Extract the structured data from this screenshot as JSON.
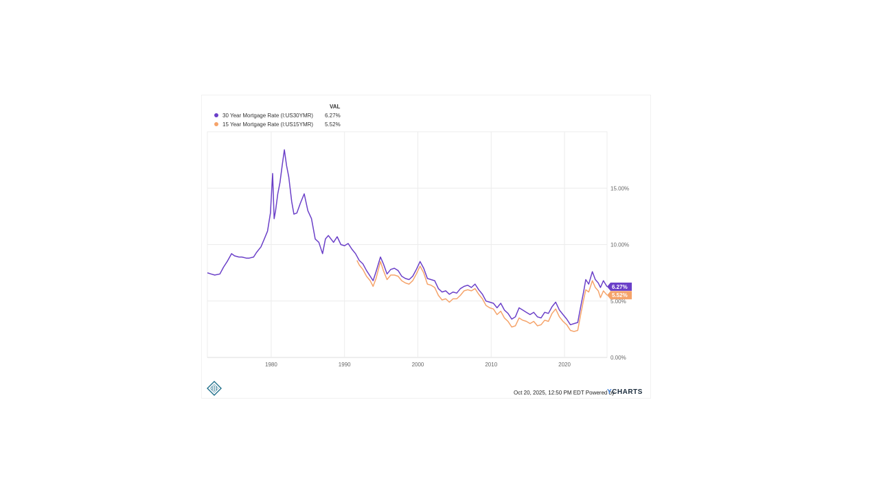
{
  "legend": {
    "header": "VAL",
    "items": [
      {
        "label": "30 Year Mortgage Rate (I:US30YMR)",
        "value": "6.27%",
        "color": "#6a3fc8"
      },
      {
        "label": "15 Year Mortgage Rate (I:US15YMR)",
        "value": "5.52%",
        "color": "#f5a36a"
      }
    ]
  },
  "footer": {
    "timestamp": "Oct 20, 2025, 12:50 PM EDT Powered by",
    "brand_prefix": "Y",
    "brand_suffix": "CHARTS"
  },
  "badges": {
    "series30": "6.27%",
    "series15": "5.52%"
  },
  "chart_data": {
    "type": "line",
    "title": "",
    "xlabel": "",
    "ylabel": "",
    "xlim": [
      1971.3,
      2025.8
    ],
    "ylim": [
      0,
      20
    ],
    "grid": true,
    "legend_position": "top-left",
    "x_ticks": [
      {
        "value": 1980,
        "label": "1980"
      },
      {
        "value": 1990,
        "label": "1990"
      },
      {
        "value": 2000,
        "label": "2000"
      },
      {
        "value": 2010,
        "label": "2010"
      },
      {
        "value": 2020,
        "label": "2020"
      }
    ],
    "y_ticks": [
      {
        "value": 0,
        "label": "0.00%"
      },
      {
        "value": 5,
        "label": "5.00%"
      },
      {
        "value": 10,
        "label": "10.00%"
      },
      {
        "value": 15,
        "label": "15.00%"
      }
    ],
    "series": [
      {
        "name": "30 Year Mortgage Rate (I:US30YMR)",
        "color": "#6a3fc8",
        "x": [
          1971.3,
          1971.8,
          1972.3,
          1973.0,
          1973.5,
          1974.0,
          1974.6,
          1975.0,
          1975.6,
          1976.0,
          1976.6,
          1977.0,
          1977.6,
          1978.0,
          1978.6,
          1979.0,
          1979.5,
          1979.9,
          1980.2,
          1980.4,
          1980.6,
          1980.9,
          1981.2,
          1981.5,
          1981.8,
          1982.1,
          1982.4,
          1982.8,
          1983.1,
          1983.5,
          1984.0,
          1984.5,
          1985.0,
          1985.5,
          1986.0,
          1986.5,
          1987.0,
          1987.4,
          1987.8,
          1988.5,
          1989.0,
          1989.5,
          1990.0,
          1990.5,
          1991.0,
          1991.5,
          1992.0,
          1992.5,
          1993.0,
          1993.5,
          1993.9,
          1994.3,
          1994.9,
          1995.3,
          1995.8,
          1996.3,
          1996.8,
          1997.3,
          1997.8,
          1998.3,
          1998.8,
          1999.3,
          1999.8,
          2000.3,
          2000.8,
          2001.3,
          2001.8,
          2002.3,
          2002.8,
          2003.3,
          2003.8,
          2004.3,
          2004.8,
          2005.3,
          2005.8,
          2006.3,
          2006.8,
          2007.3,
          2007.8,
          2008.3,
          2008.8,
          2009.3,
          2009.8,
          2010.3,
          2010.8,
          2011.3,
          2011.8,
          2012.3,
          2012.8,
          2013.3,
          2013.8,
          2014.3,
          2014.8,
          2015.3,
          2015.8,
          2016.3,
          2016.8,
          2017.3,
          2017.8,
          2018.3,
          2018.8,
          2019.3,
          2019.8,
          2020.3,
          2020.8,
          2021.3,
          2021.8,
          2022.2,
          2022.6,
          2022.9,
          2023.3,
          2023.8,
          2024.2,
          2024.6,
          2024.9,
          2025.3,
          2025.8
        ],
        "values": [
          7.5,
          7.4,
          7.3,
          7.4,
          8.0,
          8.5,
          9.2,
          9.0,
          8.9,
          8.9,
          8.8,
          8.8,
          8.9,
          9.3,
          9.8,
          10.4,
          11.2,
          12.8,
          16.3,
          12.3,
          13.0,
          14.5,
          15.5,
          17.0,
          18.4,
          17.0,
          16.0,
          13.8,
          12.7,
          12.8,
          13.7,
          14.5,
          13.0,
          12.3,
          10.5,
          10.2,
          9.2,
          10.5,
          10.8,
          10.2,
          10.7,
          10.0,
          9.9,
          10.1,
          9.6,
          9.2,
          8.6,
          8.3,
          7.7,
          7.2,
          6.8,
          7.6,
          8.9,
          8.3,
          7.4,
          7.8,
          7.9,
          7.7,
          7.2,
          7.0,
          6.9,
          7.2,
          7.8,
          8.5,
          7.9,
          7.0,
          6.9,
          6.8,
          6.1,
          5.8,
          5.9,
          5.6,
          5.8,
          5.7,
          6.1,
          6.3,
          6.4,
          6.2,
          6.5,
          6.0,
          5.6,
          5.0,
          4.9,
          4.8,
          4.4,
          4.8,
          4.2,
          3.9,
          3.4,
          3.6,
          4.4,
          4.2,
          4.0,
          3.8,
          4.0,
          3.6,
          3.5,
          4.0,
          3.9,
          4.5,
          4.9,
          4.2,
          3.8,
          3.4,
          2.9,
          3.0,
          3.1,
          4.5,
          5.8,
          6.9,
          6.5,
          7.6,
          6.9,
          6.6,
          6.2,
          6.8,
          6.27
        ]
      },
      {
        "name": "15 Year Mortgage Rate (I:US15YMR)",
        "color": "#f5a36a",
        "x": [
          1991.7,
          1992.0,
          1992.5,
          1993.0,
          1993.5,
          1993.9,
          1994.3,
          1994.9,
          1995.3,
          1995.8,
          1996.3,
          1996.8,
          1997.3,
          1997.8,
          1998.3,
          1998.8,
          1999.3,
          1999.8,
          2000.3,
          2000.8,
          2001.3,
          2001.8,
          2002.3,
          2002.8,
          2003.3,
          2003.8,
          2004.3,
          2004.8,
          2005.3,
          2005.8,
          2006.3,
          2006.8,
          2007.3,
          2007.8,
          2008.3,
          2008.8,
          2009.3,
          2009.8,
          2010.3,
          2010.8,
          2011.3,
          2011.8,
          2012.3,
          2012.8,
          2013.3,
          2013.8,
          2014.3,
          2014.8,
          2015.3,
          2015.8,
          2016.3,
          2016.8,
          2017.3,
          2017.8,
          2018.3,
          2018.8,
          2019.3,
          2019.8,
          2020.3,
          2020.8,
          2021.3,
          2021.8,
          2022.2,
          2022.6,
          2022.9,
          2023.3,
          2023.8,
          2024.2,
          2024.6,
          2024.9,
          2025.3,
          2025.8
        ],
        "values": [
          8.6,
          8.2,
          7.8,
          7.2,
          6.8,
          6.3,
          7.0,
          8.5,
          7.7,
          6.9,
          7.3,
          7.3,
          7.2,
          6.8,
          6.6,
          6.5,
          6.8,
          7.4,
          8.1,
          7.5,
          6.5,
          6.4,
          6.2,
          5.5,
          5.1,
          5.2,
          4.9,
          5.2,
          5.2,
          5.5,
          5.9,
          6.0,
          5.9,
          6.1,
          5.6,
          5.2,
          4.6,
          4.4,
          4.3,
          3.8,
          4.1,
          3.5,
          3.2,
          2.7,
          2.8,
          3.5,
          3.3,
          3.2,
          3.0,
          3.2,
          2.8,
          2.9,
          3.3,
          3.2,
          3.9,
          4.3,
          3.6,
          3.2,
          2.9,
          2.4,
          2.3,
          2.4,
          3.8,
          5.1,
          6.0,
          5.8,
          6.8,
          6.2,
          5.9,
          5.3,
          5.9,
          5.52
        ]
      }
    ]
  }
}
